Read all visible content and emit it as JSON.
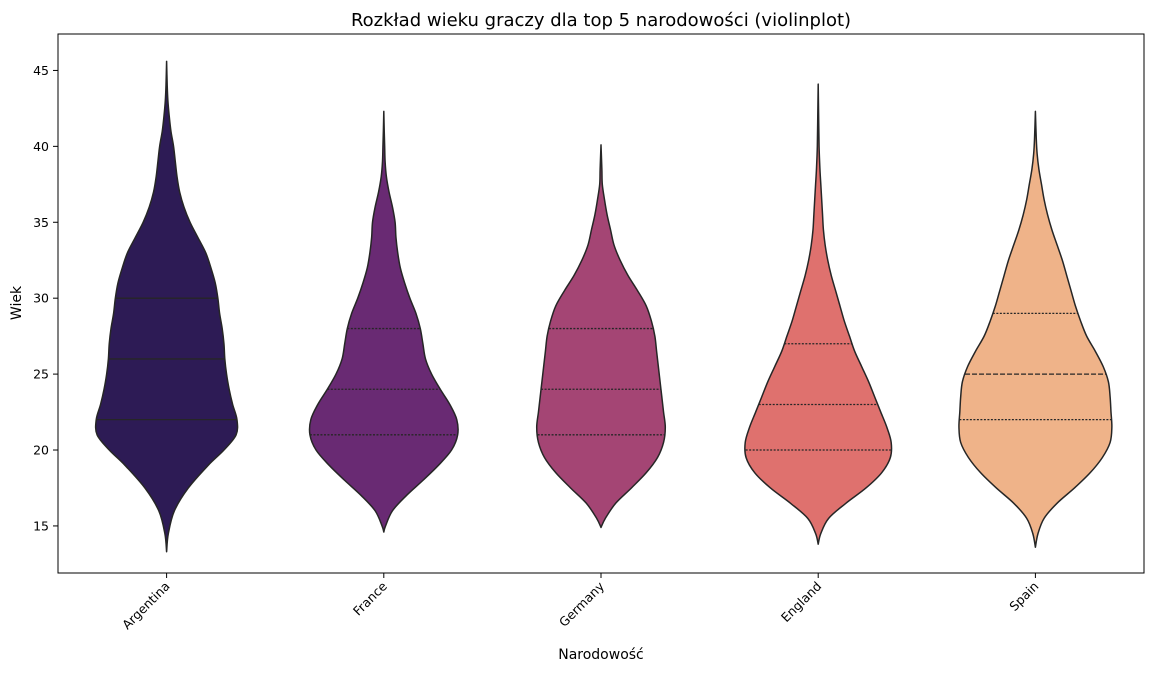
{
  "chart_data": {
    "type": "violin",
    "title": "Rozkład wieku graczy dla top 5 narodowości (violinplot)",
    "xlabel": "Narodowość",
    "ylabel": "Wiek",
    "categories": [
      "Argentina",
      "France",
      "Germany",
      "England",
      "Spain"
    ],
    "ylim": [
      11.9,
      47.4
    ],
    "yticks": [
      15,
      20,
      25,
      30,
      35,
      40,
      45
    ],
    "grid": false,
    "legend": "none",
    "colors": [
      "#2d1b55",
      "#692a73",
      "#a44574",
      "#df716e",
      "#efb389"
    ],
    "violins": [
      {
        "category": "Argentina",
        "min": 13.3,
        "max": 45.6,
        "quartiles": [
          22,
          26,
          30
        ],
        "inner_style": "solid",
        "profile": [
          [
            13.3,
            0.0
          ],
          [
            14.5,
            0.02
          ],
          [
            16,
            0.09
          ],
          [
            17.5,
            0.25
          ],
          [
            19,
            0.48
          ],
          [
            20,
            0.66
          ],
          [
            21,
            0.8
          ],
          [
            22,
            0.81
          ],
          [
            23,
            0.76
          ],
          [
            24,
            0.72
          ],
          [
            25,
            0.69
          ],
          [
            26,
            0.67
          ],
          [
            27,
            0.66
          ],
          [
            28,
            0.64
          ],
          [
            29,
            0.61
          ],
          [
            30,
            0.59
          ],
          [
            31,
            0.56
          ],
          [
            32,
            0.51
          ],
          [
            33,
            0.45
          ],
          [
            34,
            0.36
          ],
          [
            35,
            0.27
          ],
          [
            36,
            0.2
          ],
          [
            37,
            0.15
          ],
          [
            38,
            0.12
          ],
          [
            39,
            0.1
          ],
          [
            40,
            0.08
          ],
          [
            41,
            0.05
          ],
          [
            42,
            0.03
          ],
          [
            43,
            0.015
          ],
          [
            44,
            0.007
          ],
          [
            45.6,
            0.0
          ]
        ]
      },
      {
        "category": "France",
        "min": 14.6,
        "max": 42.3,
        "quartiles": [
          21,
          24,
          28
        ],
        "inner_style": "dotted",
        "profile": [
          [
            14.6,
            0.0
          ],
          [
            15,
            0.02
          ],
          [
            16,
            0.1
          ],
          [
            17,
            0.26
          ],
          [
            18,
            0.45
          ],
          [
            19,
            0.63
          ],
          [
            20,
            0.78
          ],
          [
            21,
            0.85
          ],
          [
            22,
            0.84
          ],
          [
            23,
            0.76
          ],
          [
            24,
            0.65
          ],
          [
            25,
            0.55
          ],
          [
            26,
            0.48
          ],
          [
            27,
            0.45
          ],
          [
            28,
            0.42
          ],
          [
            29,
            0.37
          ],
          [
            30,
            0.3
          ],
          [
            31,
            0.24
          ],
          [
            32,
            0.19
          ],
          [
            33,
            0.16
          ],
          [
            34,
            0.14
          ],
          [
            35,
            0.13
          ],
          [
            36,
            0.1
          ],
          [
            37,
            0.06
          ],
          [
            38,
            0.03
          ],
          [
            39,
            0.015
          ],
          [
            40,
            0.01
          ],
          [
            41,
            0.005
          ],
          [
            42.3,
            0.0
          ]
        ]
      },
      {
        "category": "Germany",
        "min": 14.9,
        "max": 40.1,
        "quartiles": [
          21,
          24,
          28
        ],
        "inner_style": "dotted",
        "profile": [
          [
            14.9,
            0.0
          ],
          [
            15.5,
            0.05
          ],
          [
            16.5,
            0.17
          ],
          [
            17.5,
            0.35
          ],
          [
            18.5,
            0.52
          ],
          [
            19.5,
            0.65
          ],
          [
            20.5,
            0.72
          ],
          [
            21.5,
            0.74
          ],
          [
            22.5,
            0.72
          ],
          [
            23.5,
            0.7
          ],
          [
            24.5,
            0.68
          ],
          [
            25.5,
            0.66
          ],
          [
            26.5,
            0.64
          ],
          [
            27.5,
            0.62
          ],
          [
            28.5,
            0.58
          ],
          [
            29.5,
            0.52
          ],
          [
            30.5,
            0.42
          ],
          [
            31.5,
            0.31
          ],
          [
            32.5,
            0.22
          ],
          [
            33.5,
            0.15
          ],
          [
            34.5,
            0.11
          ],
          [
            35.5,
            0.07
          ],
          [
            36.5,
            0.04
          ],
          [
            37.5,
            0.015
          ],
          [
            38.5,
            0.01
          ],
          [
            40.1,
            0.0
          ]
        ]
      },
      {
        "category": "England",
        "min": 13.8,
        "max": 44.1,
        "quartiles": [
          20,
          23,
          27
        ],
        "inner_style": "dotted",
        "profile": [
          [
            13.8,
            0.0
          ],
          [
            14.5,
            0.03
          ],
          [
            15.5,
            0.12
          ],
          [
            16.5,
            0.32
          ],
          [
            17.5,
            0.55
          ],
          [
            18.5,
            0.73
          ],
          [
            19.5,
            0.83
          ],
          [
            20.5,
            0.84
          ],
          [
            21.5,
            0.79
          ],
          [
            22.5,
            0.72
          ],
          [
            23.5,
            0.65
          ],
          [
            24.5,
            0.58
          ],
          [
            25.5,
            0.5
          ],
          [
            26.5,
            0.42
          ],
          [
            27.5,
            0.36
          ],
          [
            28.5,
            0.3
          ],
          [
            29.5,
            0.25
          ],
          [
            30.5,
            0.2
          ],
          [
            31.5,
            0.15
          ],
          [
            32.5,
            0.11
          ],
          [
            33.5,
            0.08
          ],
          [
            34.5,
            0.06
          ],
          [
            35.5,
            0.05
          ],
          [
            36.5,
            0.04
          ],
          [
            37.5,
            0.03
          ],
          [
            38.5,
            0.02
          ],
          [
            40,
            0.01
          ],
          [
            42,
            0.005
          ],
          [
            44.1,
            0.0
          ]
        ]
      },
      {
        "category": "Spain",
        "min": 13.6,
        "max": 42.3,
        "quartiles": [
          22,
          25,
          29
        ],
        "inner_style": "dotted-median-dashed",
        "profile": [
          [
            13.6,
            0.0
          ],
          [
            14.5,
            0.03
          ],
          [
            15.5,
            0.1
          ],
          [
            16.5,
            0.25
          ],
          [
            17.5,
            0.45
          ],
          [
            18.5,
            0.63
          ],
          [
            19.5,
            0.77
          ],
          [
            20.5,
            0.86
          ],
          [
            21.5,
            0.88
          ],
          [
            22.5,
            0.87
          ],
          [
            23.5,
            0.86
          ],
          [
            24.5,
            0.84
          ],
          [
            25.5,
            0.78
          ],
          [
            26.5,
            0.69
          ],
          [
            27.5,
            0.59
          ],
          [
            28.5,
            0.52
          ],
          [
            29.5,
            0.46
          ],
          [
            30.5,
            0.41
          ],
          [
            31.5,
            0.36
          ],
          [
            32.5,
            0.31
          ],
          [
            33.5,
            0.25
          ],
          [
            34.5,
            0.19
          ],
          [
            35.5,
            0.14
          ],
          [
            36.5,
            0.1
          ],
          [
            37.5,
            0.07
          ],
          [
            38.5,
            0.04
          ],
          [
            39.5,
            0.02
          ],
          [
            40.5,
            0.01
          ],
          [
            42.3,
            0.0
          ]
        ]
      }
    ]
  }
}
